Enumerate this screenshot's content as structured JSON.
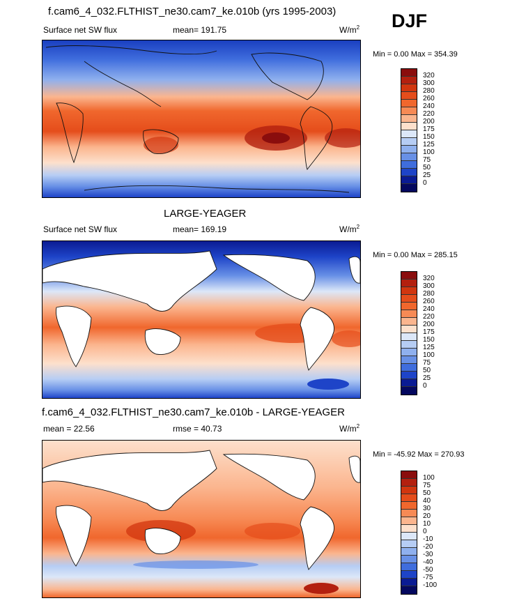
{
  "header": {
    "main_title": "f.cam6_4_032.FLTHIST_ne30.cam7_ke.010b (yrs 1995-2003)",
    "season": "DJF"
  },
  "panels": [
    {
      "id": "test",
      "title": "",
      "left_label": "Surface net SW flux",
      "center_label": "mean= 191.75",
      "units": "W/m",
      "units_sup": "2",
      "minmax": "Min =   0.00 Max = 354.39",
      "colorbar_labels": [
        "320",
        "300",
        "280",
        "260",
        "240",
        "220",
        "200",
        "175",
        "150",
        "125",
        "100",
        "75",
        "50",
        "25",
        "0"
      ],
      "colorbar_colors": [
        "#8a0d0d",
        "#b3200f",
        "#d1360f",
        "#e54d1b",
        "#f0672d",
        "#f78a55",
        "#fbb58e",
        "#fde0cc",
        "#dce7f8",
        "#b6cdf4",
        "#8fb0ee",
        "#6890e6",
        "#3f6ddd",
        "#1e44c8",
        "#0a1b93",
        "#04085f"
      ]
    },
    {
      "id": "reference",
      "title": "LARGE-YEAGER",
      "left_label": "Surface net SW flux",
      "center_label": "mean= 169.19",
      "units": "W/m",
      "units_sup": "2",
      "minmax": "Min =   0.00 Max = 285.15",
      "colorbar_labels": [
        "320",
        "300",
        "280",
        "260",
        "240",
        "220",
        "200",
        "175",
        "150",
        "125",
        "100",
        "75",
        "50",
        "25",
        "0"
      ],
      "colorbar_colors": [
        "#8a0d0d",
        "#b3200f",
        "#d1360f",
        "#e54d1b",
        "#f0672d",
        "#f78a55",
        "#fbb58e",
        "#fde0cc",
        "#dce7f8",
        "#b6cdf4",
        "#8fb0ee",
        "#6890e6",
        "#3f6ddd",
        "#1e44c8",
        "#0a1b93",
        "#04085f"
      ]
    },
    {
      "id": "difference",
      "title": "f.cam6_4_032.FLTHIST_ne30.cam7_ke.010b - LARGE-YEAGER",
      "left_label": "mean =  22.56",
      "center_label": "rmse =  40.73",
      "units": "W/m",
      "units_sup": "2",
      "minmax": "Min = -45.92 Max = 270.93",
      "colorbar_labels": [
        "100",
        "75",
        "50",
        "40",
        "30",
        "20",
        "10",
        "0",
        "-10",
        "-20",
        "-30",
        "-40",
        "-50",
        "-75",
        "-100"
      ],
      "colorbar_colors": [
        "#8a0d0d",
        "#b3200f",
        "#d1360f",
        "#e54d1b",
        "#f0672d",
        "#f78a55",
        "#fbb58e",
        "#fde0cc",
        "#dce7f8",
        "#b6cdf4",
        "#8fb0ee",
        "#6890e6",
        "#3f6ddd",
        "#1e44c8",
        "#0a1b93",
        "#04085f"
      ]
    }
  ]
}
